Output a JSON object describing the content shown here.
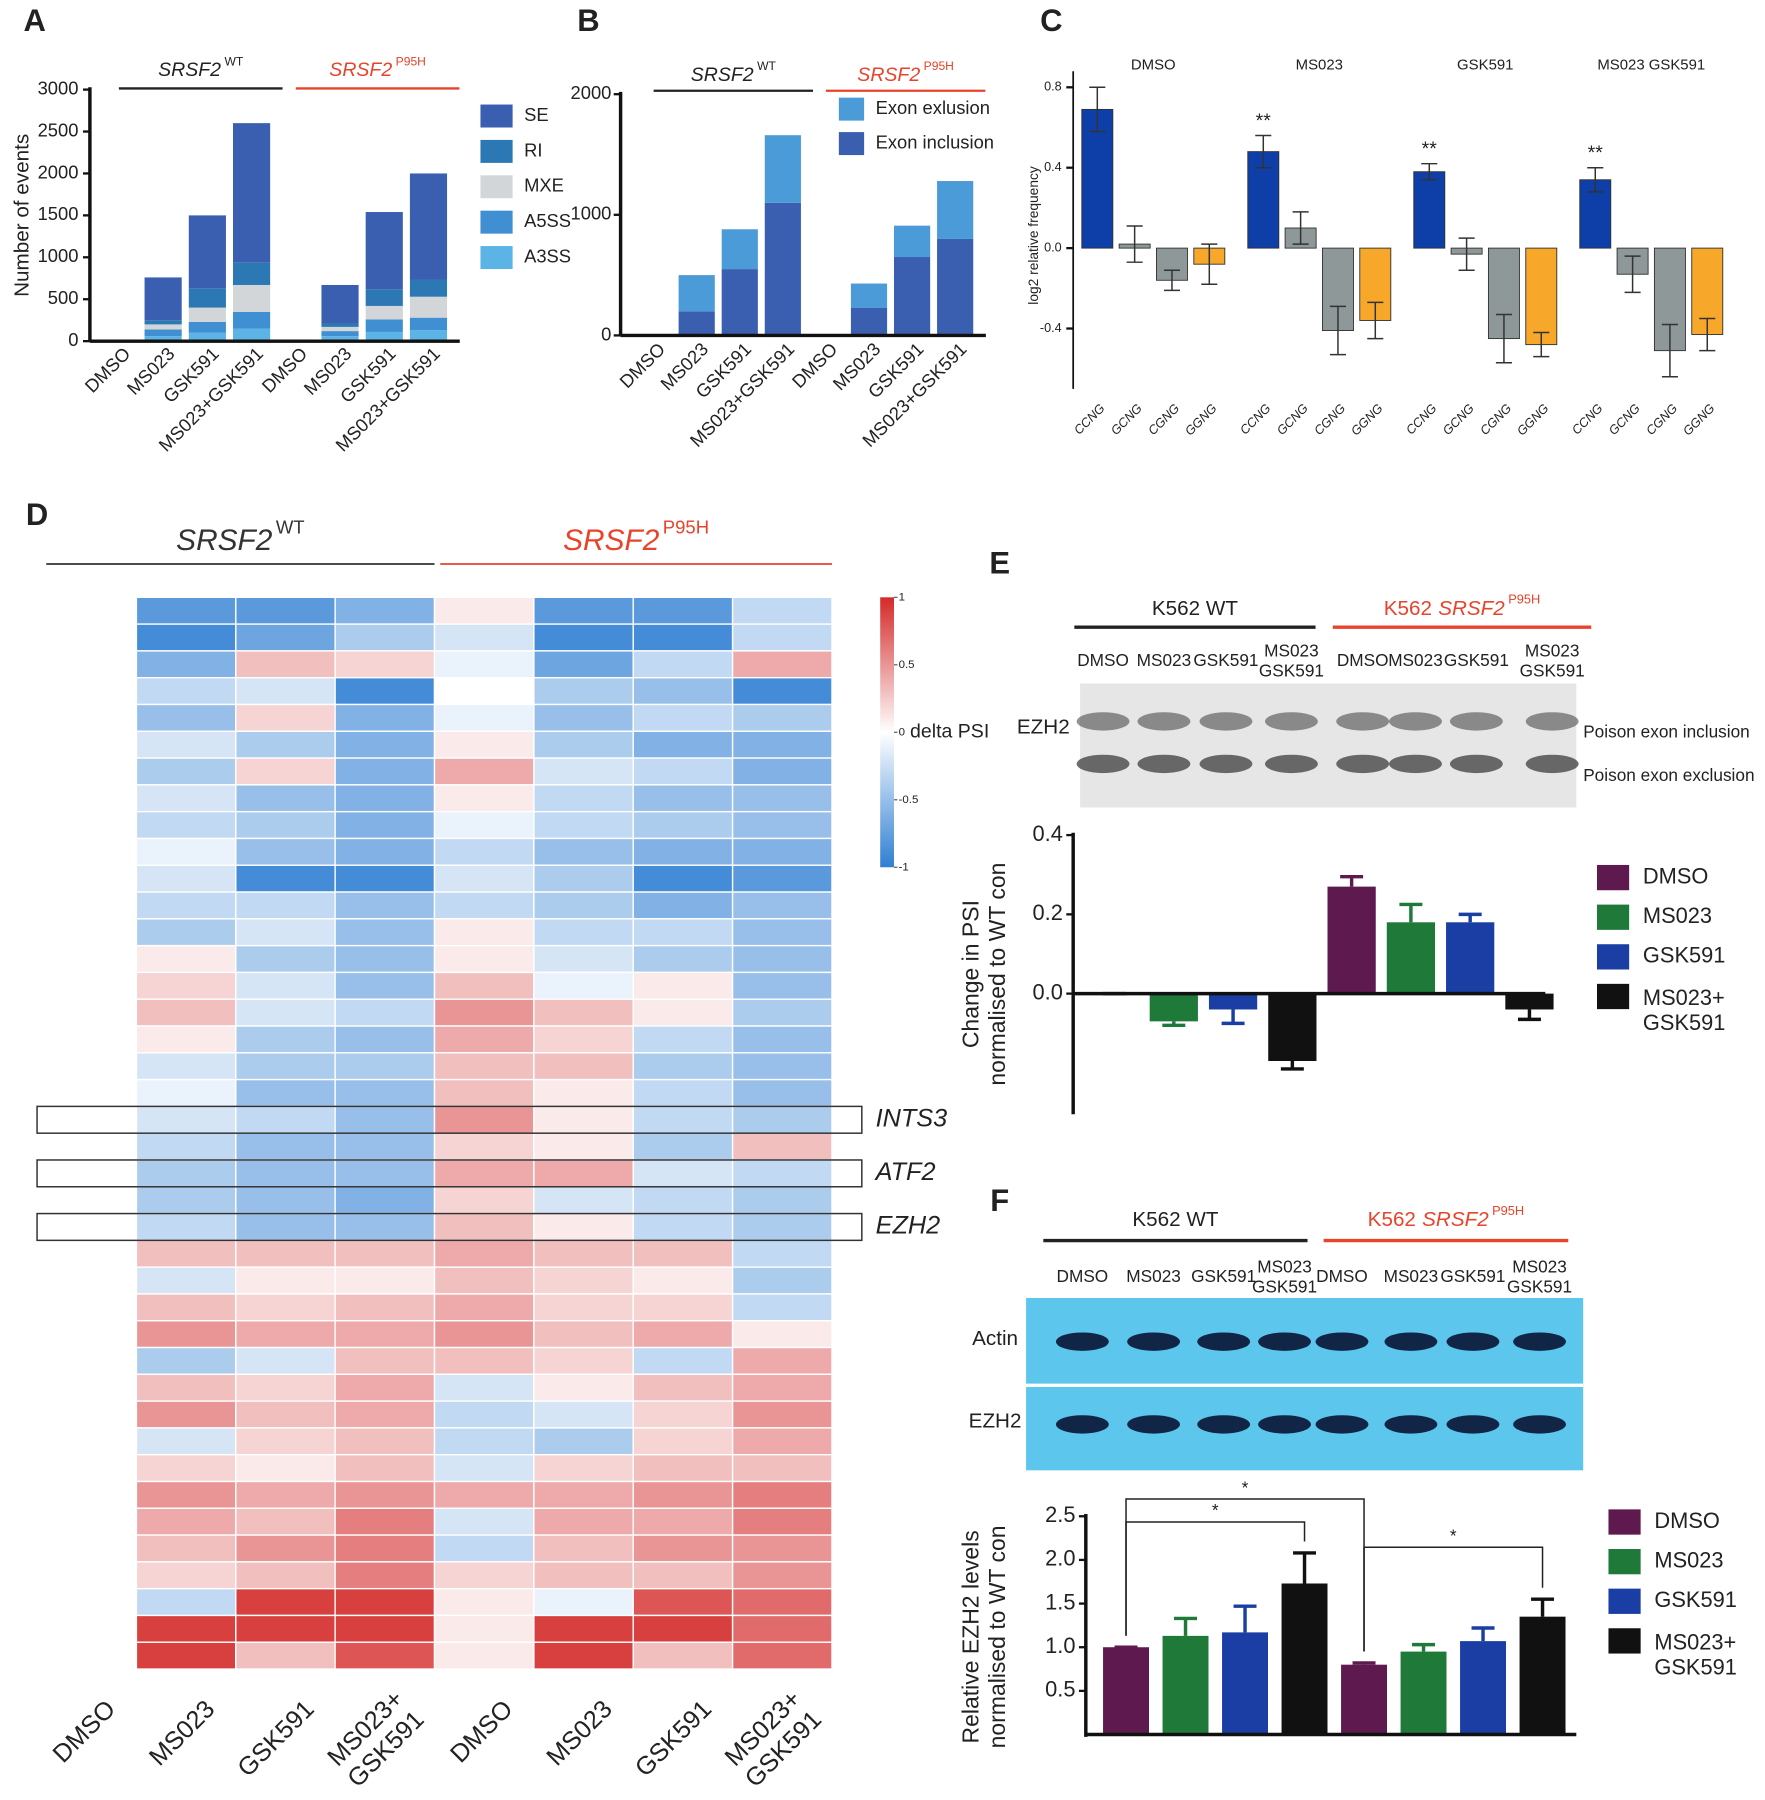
{
  "chart_data": [
    {
      "label": "A",
      "type": "stacked-bar",
      "ylabel": "Number of events",
      "groups": [
        {
          "gene": "SRSF2",
          "sup": "WT",
          "color": "#222222"
        },
        {
          "gene": "SRSF2",
          "sup": "P95H",
          "color": "#e8432b"
        }
      ],
      "categories": [
        "DMSO",
        "MS023",
        "GSK591",
        "MS023+GSK591",
        "DMSO",
        "MS023",
        "GSK591",
        "MS023+GSK591"
      ],
      "series": [
        {
          "name": "SE",
          "color": "#3a5fb0",
          "values": [
            0,
            510,
            870,
            1660,
            0,
            460,
            920,
            1270
          ]
        },
        {
          "name": "RI",
          "color": "#2b78b4",
          "values": [
            0,
            50,
            230,
            270,
            0,
            40,
            200,
            200
          ]
        },
        {
          "name": "MXE",
          "color": "#d3d6d8",
          "values": [
            0,
            60,
            170,
            320,
            0,
            50,
            160,
            250
          ]
        },
        {
          "name": "A5SS",
          "color": "#3f8fd2",
          "values": [
            0,
            80,
            130,
            200,
            0,
            60,
            150,
            150
          ]
        },
        {
          "name": "A3SS",
          "color": "#5cb4e6",
          "values": [
            0,
            60,
            100,
            150,
            0,
            60,
            110,
            130
          ]
        }
      ],
      "ylim": [
        0,
        3000
      ],
      "yticks": [
        0,
        500,
        1000,
        1500,
        2000,
        2500,
        3000
      ]
    },
    {
      "label": "B",
      "type": "stacked-bar",
      "groups": [
        {
          "gene": "SRSF2",
          "sup": "WT",
          "color": "#222222"
        },
        {
          "gene": "SRSF2",
          "sup": "P95H",
          "color": "#e8432b"
        }
      ],
      "categories": [
        "DMSO",
        "MS023",
        "GSK591",
        "MS023+GSK591",
        "DMSO",
        "MS023",
        "GSK591",
        "MS023+GSK591"
      ],
      "series": [
        {
          "name": "Exon exlusion",
          "color": "#4a9bd8",
          "values": [
            0,
            300,
            330,
            560,
            0,
            200,
            260,
            480
          ]
        },
        {
          "name": "Exon inclusion",
          "color": "#3a5fb0",
          "values": [
            0,
            200,
            550,
            1100,
            0,
            230,
            650,
            800
          ]
        }
      ],
      "ylim": [
        0,
        2000
      ],
      "yticks": [
        0,
        1000,
        2000
      ]
    },
    {
      "label": "C",
      "type": "grouped-bar-error",
      "ylabel": "log2 relative frequency",
      "groups": [
        "DMSO",
        "MS023",
        "GSK591",
        "MS023 GSK591"
      ],
      "categories": [
        "CCNG",
        "GCNG",
        "CGNG",
        "GGNG"
      ],
      "colors": [
        "#0e3fa9",
        "#8e9898",
        "#8e9898",
        "#f7a82a"
      ],
      "values": [
        [
          0.69,
          0.02,
          -0.16,
          -0.08
        ],
        [
          0.48,
          0.1,
          -0.41,
          -0.36
        ],
        [
          0.38,
          -0.03,
          -0.45,
          -0.48
        ],
        [
          0.34,
          -0.13,
          -0.51,
          -0.43
        ]
      ],
      "errors": [
        [
          0.11,
          0.09,
          0.05,
          0.1
        ],
        [
          0.08,
          0.08,
          0.12,
          0.09
        ],
        [
          0.04,
          0.08,
          0.12,
          0.06
        ],
        [
          0.06,
          0.09,
          0.13,
          0.08
        ]
      ],
      "annotations": [
        null,
        "**",
        "**",
        "**"
      ],
      "ylim": [
        -0.7,
        0.88
      ],
      "yticks": [
        -0.4,
        {
          "value": 0,
          "label": "0.0"
        },
        0.4,
        0.8
      ]
    },
    {
      "label": "D",
      "type": "heatmap",
      "groups": [
        {
          "gene": "SRSF2",
          "sup": "WT",
          "color": "#333333"
        },
        {
          "gene": "SRSF2",
          "sup": "P95H",
          "color": "#e8432b"
        }
      ],
      "columns": [
        "DMSO",
        "MS023",
        "GSK591",
        "MS023+\nGSK591",
        "DMSO",
        "MS023",
        "GSK591",
        "MS023+\nGSK591"
      ],
      "values": [
        [
          0,
          -0.8,
          -0.8,
          -0.6,
          0.1,
          -0.8,
          -0.8,
          -0.3
        ],
        [
          0,
          -0.9,
          -0.7,
          -0.4,
          -0.2,
          -0.9,
          -0.9,
          -0.3
        ],
        [
          0,
          -0.6,
          0.3,
          0.2,
          -0.1,
          -0.7,
          -0.3,
          0.4
        ],
        [
          0,
          -0.3,
          -0.2,
          -0.9,
          0,
          -0.4,
          -0.5,
          -0.9
        ],
        [
          0,
          -0.5,
          0.2,
          -0.6,
          -0.1,
          -0.5,
          -0.3,
          -0.4
        ],
        [
          0,
          -0.2,
          -0.4,
          -0.6,
          0.1,
          -0.4,
          -0.6,
          -0.6
        ],
        [
          0,
          -0.4,
          0.2,
          -0.6,
          0.4,
          -0.2,
          -0.3,
          -0.6
        ],
        [
          0,
          -0.2,
          -0.5,
          -0.6,
          0.1,
          -0.3,
          -0.5,
          -0.5
        ],
        [
          0,
          -0.3,
          -0.4,
          -0.6,
          -0.1,
          -0.3,
          -0.4,
          -0.5
        ],
        [
          0,
          -0.1,
          -0.5,
          -0.6,
          -0.3,
          -0.5,
          -0.6,
          -0.6
        ],
        [
          0,
          -0.2,
          -0.9,
          -0.9,
          -0.2,
          -0.4,
          -0.9,
          -0.8
        ],
        [
          0,
          -0.3,
          -0.3,
          -0.5,
          -0.3,
          -0.4,
          -0.6,
          -0.5
        ],
        [
          0,
          -0.4,
          -0.2,
          -0.5,
          0.1,
          -0.3,
          -0.3,
          -0.5
        ],
        [
          0,
          0.1,
          -0.4,
          -0.5,
          0.1,
          -0.2,
          -0.4,
          -0.5
        ],
        [
          0,
          0.2,
          -0.2,
          -0.5,
          0.3,
          -0.1,
          0.1,
          -0.5
        ],
        [
          0,
          0.3,
          -0.2,
          -0.3,
          0.5,
          0.3,
          0.1,
          -0.4
        ],
        [
          0,
          0.1,
          -0.4,
          -0.5,
          0.4,
          0.2,
          -0.3,
          -0.5
        ],
        [
          0,
          -0.2,
          -0.4,
          -0.4,
          0.3,
          0.3,
          -0.4,
          -0.5
        ],
        [
          0,
          -0.1,
          -0.5,
          -0.5,
          0.3,
          0.1,
          -0.3,
          -0.5
        ],
        [
          0,
          -0.2,
          -0.3,
          -0.5,
          0.5,
          0.1,
          -0.3,
          -0.4
        ],
        [
          0,
          -0.3,
          -0.5,
          -0.5,
          0.2,
          0.1,
          -0.4,
          0.3
        ],
        [
          0,
          -0.4,
          -0.5,
          -0.5,
          0.4,
          0.4,
          -0.2,
          -0.3
        ],
        [
          0,
          -0.4,
          -0.5,
          -0.6,
          0.2,
          -0.2,
          -0.3,
          -0.4
        ],
        [
          0,
          -0.3,
          -0.5,
          -0.5,
          0.3,
          0.1,
          -0.3,
          -0.4
        ],
        [
          0,
          0.3,
          0.3,
          0.3,
          0.4,
          0.3,
          0.3,
          -0.3
        ],
        [
          0,
          -0.2,
          0.1,
          0.1,
          0.3,
          0.2,
          0.1,
          -0.4
        ],
        [
          0,
          0.3,
          0.2,
          0.3,
          0.4,
          0.2,
          0.2,
          -0.3
        ],
        [
          0,
          0.5,
          0.4,
          0.4,
          0.5,
          0.3,
          0.4,
          0.1
        ],
        [
          0,
          -0.4,
          -0.2,
          0.3,
          0.3,
          0.2,
          -0.3,
          0.4
        ],
        [
          0,
          0.3,
          0.2,
          0.4,
          -0.2,
          0.1,
          0.3,
          0.4
        ],
        [
          0,
          0.5,
          0.3,
          0.4,
          -0.3,
          -0.2,
          0.2,
          0.5
        ],
        [
          0,
          -0.2,
          0.2,
          0.3,
          -0.3,
          -0.4,
          0.2,
          0.4
        ],
        [
          0,
          0.2,
          0.1,
          0.3,
          -0.2,
          0.2,
          0.3,
          0.3
        ],
        [
          0,
          0.5,
          0.4,
          0.5,
          0.4,
          0.4,
          0.5,
          0.6
        ],
        [
          0,
          0.4,
          0.3,
          0.6,
          -0.2,
          0.4,
          0.4,
          0.6
        ],
        [
          0,
          0.3,
          0.5,
          0.6,
          -0.3,
          0.3,
          0.5,
          0.5
        ],
        [
          0,
          0.2,
          0.3,
          0.6,
          0.2,
          0.3,
          0.3,
          0.5
        ],
        [
          0,
          -0.3,
          0.9,
          0.9,
          0.1,
          -0.1,
          0.8,
          0.7
        ],
        [
          0,
          0.9,
          0.9,
          0.9,
          0.1,
          0.9,
          0.9,
          0.7
        ],
        [
          0,
          0.9,
          0.3,
          0.8,
          0.1,
          0.9,
          0.3,
          0.7
        ]
      ],
      "highlights": [
        {
          "row": 19,
          "label": "INTS3"
        },
        {
          "row": 21,
          "label": "ATF2"
        },
        {
          "row": 23,
          "label": "EZH2"
        }
      ],
      "colorscale": [
        "#2f7fd3",
        "#ffffff",
        "#d42a2a"
      ],
      "clim": [
        -1,
        1
      ],
      "cticks": [
        1,
        0.5,
        0,
        -0.5,
        -1
      ],
      "colorbar_label": "delta PSI"
    },
    {
      "label": "E",
      "type": "blot-bar",
      "lane_groups": [
        {
          "name": "K562 WT",
          "color": "#222222"
        },
        {
          "name": "K562",
          "gene": "SRSF2",
          "sup": "P95H",
          "color": "#e8432b"
        }
      ],
      "lanes": [
        "DMSO",
        "MS023",
        "GSK591",
        "MS023\nGSK591",
        "DMSO",
        "MS023",
        "GSK591",
        "MS023\nGSK591"
      ],
      "blot_rows": [
        "EZH2"
      ],
      "band_labels": [
        "Poison exon inclusion",
        "Poison exon exclusion"
      ],
      "ylabel": "Change in PSI\nnormalised to WT con",
      "series": [
        {
          "name": "DMSO",
          "color": "#5e1a4f",
          "values": [
            0,
            0.27
          ],
          "errors": [
            0,
            0.025
          ]
        },
        {
          "name": "MS023",
          "color": "#1f7a3a",
          "values": [
            -0.07,
            0.18
          ],
          "errors": [
            0.01,
            0.045
          ]
        },
        {
          "name": "GSK591",
          "color": "#1a3ea3",
          "values": [
            -0.04,
            0.18
          ],
          "errors": [
            0.035,
            0.02
          ]
        },
        {
          "name": "MS023+\nGSK591",
          "color": "#111111",
          "values": [
            -0.17,
            -0.04
          ],
          "errors": [
            0.02,
            0.025
          ]
        }
      ],
      "ylim": [
        -0.3,
        0.4
      ],
      "yticks": [
        {
          "value": 0,
          "label": "0.0"
        },
        0.2,
        0.4
      ]
    },
    {
      "label": "F",
      "type": "blot-bar",
      "lane_groups": [
        {
          "name": "K562 WT",
          "color": "#222222"
        },
        {
          "name": "K562",
          "gene": "SRSF2",
          "sup": "P95H",
          "color": "#e8432b"
        }
      ],
      "lanes": [
        "DMSO",
        "MS023",
        "GSK591",
        "MS023\nGSK591",
        "DMSO",
        "MS023",
        "GSK591",
        "MS023\nGSK591"
      ],
      "blot_rows": [
        "Actin",
        "EZH2"
      ],
      "ylabel": "Relative EZH2 levels\nnormalised to WT con",
      "series": [
        {
          "name": "DMSO",
          "color": "#5e1a4f",
          "values": [
            1.0,
            0.8
          ],
          "errors": [
            0,
            0.02
          ]
        },
        {
          "name": "MS023",
          "color": "#1f7a3a",
          "values": [
            1.13,
            0.95
          ],
          "errors": [
            0.2,
            0.08
          ]
        },
        {
          "name": "GSK591",
          "color": "#1a3ea3",
          "values": [
            1.17,
            1.07
          ],
          "errors": [
            0.3,
            0.15
          ]
        },
        {
          "name": "MS023+\nGSK591",
          "color": "#111111",
          "values": [
            1.73,
            1.35
          ],
          "errors": [
            0.35,
            0.2
          ]
        }
      ],
      "brackets": [
        {
          "from": 0,
          "to": 3,
          "label": "*"
        },
        {
          "from": 0,
          "to": 4,
          "label": "*"
        },
        {
          "from": 4,
          "to": 7,
          "label": "*"
        }
      ],
      "ylim": [
        0,
        2.55
      ],
      "yticks": [
        0.5,
        {
          "value": 1,
          "label": "1.0"
        },
        1.5,
        {
          "value": 2,
          "label": "2.0"
        },
        2.5
      ]
    }
  ]
}
